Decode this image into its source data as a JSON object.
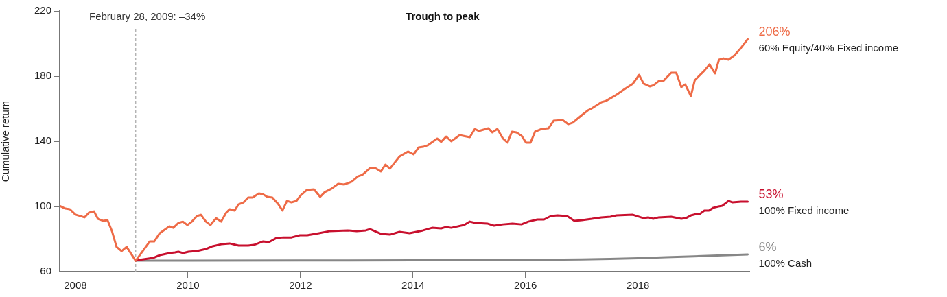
{
  "chart_data": {
    "type": "line",
    "title": "Trough to peak",
    "ylabel": "Cumulative return",
    "xlim": [
      2007.72,
      2019.98
    ],
    "xticks": [
      2008,
      2010,
      2012,
      2014,
      2016,
      2018
    ],
    "ylim": [
      60,
      220
    ],
    "yticks": [
      60,
      100,
      140,
      180,
      220
    ],
    "legend": false,
    "marker": "none",
    "line_style": "solid",
    "ref_lines": [
      {
        "axis": "x",
        "value": 2009.07,
        "label": "February 28, 2009: –34%",
        "color": "#b3b3b3",
        "line_style": "dashed"
      }
    ],
    "annotations": [
      "206%",
      "53%",
      "6%"
    ],
    "series": [
      {
        "name": "60% Equity/40% Fixed income",
        "color": "#ee6b47",
        "x": [
          2007.72,
          2007.82,
          2007.9,
          2008.0,
          2008.16,
          2008.24,
          2008.33,
          2008.4,
          2008.49,
          2008.57,
          2008.65,
          2008.73,
          2008.82,
          2008.91,
          2009.07,
          2009.18,
          2009.32,
          2009.4,
          2009.5,
          2009.67,
          2009.74,
          2009.83,
          2009.91,
          2009.99,
          2010.07,
          2010.16,
          2010.23,
          2010.32,
          2010.4,
          2010.5,
          2010.59,
          2010.68,
          2010.74,
          2010.83,
          2010.9,
          2010.99,
          2011.07,
          2011.15,
          2011.26,
          2011.33,
          2011.41,
          2011.5,
          2011.6,
          2011.68,
          2011.76,
          2011.84,
          2011.93,
          2012.0,
          2012.11,
          2012.24,
          2012.35,
          2012.43,
          2012.55,
          2012.67,
          2012.78,
          2012.91,
          2013.02,
          2013.1,
          2013.24,
          2013.33,
          2013.43,
          2013.51,
          2013.59,
          2013.76,
          2013.91,
          2014.01,
          2014.1,
          2014.18,
          2014.26,
          2014.43,
          2014.5,
          2014.59,
          2014.68,
          2014.83,
          2015.01,
          2015.1,
          2015.17,
          2015.34,
          2015.41,
          2015.5,
          2015.6,
          2015.68,
          2015.76,
          2015.84,
          2015.93,
          2016.01,
          2016.09,
          2016.17,
          2016.29,
          2016.41,
          2016.5,
          2016.66,
          2016.76,
          2016.84,
          2017.0,
          2017.11,
          2017.18,
          2017.35,
          2017.43,
          2017.54,
          2017.62,
          2017.76,
          2017.91,
          2018.02,
          2018.1,
          2018.21,
          2018.28,
          2018.37,
          2018.45,
          2018.59,
          2018.68,
          2018.77,
          2018.84,
          2018.94,
          2019.01,
          2019.18,
          2019.27,
          2019.37,
          2019.44,
          2019.52,
          2019.61,
          2019.71,
          2019.83,
          2019.95
        ],
        "values": [
          100.4,
          98.7,
          98.3,
          95.0,
          93.3,
          96.2,
          97.0,
          92.4,
          91.2,
          91.6,
          84.8,
          75.2,
          72.6,
          75.2,
          66.7,
          71.8,
          78.5,
          78.5,
          83.6,
          87.8,
          86.9,
          89.9,
          90.7,
          88.6,
          90.7,
          94.1,
          94.9,
          90.7,
          88.6,
          92.8,
          90.7,
          96.2,
          98.3,
          97.5,
          101.3,
          102.5,
          105.5,
          105.5,
          108.0,
          107.6,
          105.9,
          105.5,
          101.7,
          97.5,
          103.4,
          102.5,
          103.4,
          106.7,
          110.1,
          110.5,
          105.9,
          108.8,
          110.9,
          113.9,
          113.5,
          115.2,
          118.5,
          119.4,
          123.6,
          123.6,
          121.5,
          125.7,
          123.2,
          130.7,
          133.7,
          132.0,
          136.2,
          136.6,
          137.5,
          141.7,
          139.6,
          142.9,
          140.0,
          143.8,
          142.5,
          147.6,
          146.3,
          148.0,
          145.5,
          147.6,
          141.7,
          139.2,
          145.9,
          145.5,
          143.4,
          139.2,
          139.2,
          145.9,
          147.6,
          148.0,
          152.6,
          153.1,
          150.5,
          151.4,
          156.0,
          159.0,
          160.2,
          164.0,
          164.8,
          167.0,
          168.6,
          172.0,
          175.4,
          180.8,
          175.4,
          173.7,
          174.5,
          177.0,
          177.0,
          182.1,
          182.1,
          173.3,
          174.9,
          167.8,
          177.5,
          183.4,
          187.2,
          181.7,
          190.1,
          190.9,
          190.1,
          192.6,
          197.3,
          202.7
        ]
      },
      {
        "name": "100% Fixed income",
        "color": "#c8102e",
        "x": [
          2009.07,
          2009.13,
          2009.38,
          2009.5,
          2009.67,
          2009.77,
          2009.83,
          2009.91,
          2010.01,
          2010.16,
          2010.32,
          2010.44,
          2010.59,
          2010.74,
          2010.9,
          2011.07,
          2011.17,
          2011.33,
          2011.44,
          2011.57,
          2011.7,
          2011.84,
          2011.99,
          2012.12,
          2012.33,
          2012.51,
          2012.84,
          2013.0,
          2013.16,
          2013.24,
          2013.43,
          2013.59,
          2013.76,
          2013.94,
          2014.18,
          2014.34,
          2014.5,
          2014.59,
          2014.68,
          2014.91,
          2015.01,
          2015.11,
          2015.32,
          2015.44,
          2015.6,
          2015.77,
          2015.93,
          2016.05,
          2016.21,
          2016.33,
          2016.45,
          2016.57,
          2016.74,
          2016.87,
          2017.0,
          2017.18,
          2017.35,
          2017.51,
          2017.62,
          2017.91,
          2018.1,
          2018.18,
          2018.27,
          2018.37,
          2018.59,
          2018.77,
          2018.85,
          2018.94,
          2019.04,
          2019.1,
          2019.18,
          2019.26,
          2019.34,
          2019.43,
          2019.5,
          2019.61,
          2019.68,
          2019.83,
          2019.95
        ],
        "values": [
          66.7,
          67.2,
          68.4,
          70.1,
          71.4,
          71.8,
          72.2,
          71.4,
          72.2,
          72.6,
          73.9,
          75.6,
          76.8,
          77.3,
          76.0,
          76.0,
          76.4,
          78.5,
          78.1,
          80.6,
          81.0,
          81.0,
          82.3,
          82.3,
          83.6,
          84.8,
          85.3,
          84.8,
          85.3,
          86.1,
          83.2,
          82.7,
          84.4,
          83.6,
          85.3,
          86.9,
          86.5,
          87.4,
          86.9,
          88.6,
          90.7,
          89.9,
          89.5,
          88.2,
          89.0,
          89.5,
          89.0,
          90.7,
          92.0,
          92.0,
          94.1,
          94.5,
          94.1,
          91.2,
          91.6,
          92.4,
          93.3,
          93.7,
          94.5,
          94.9,
          92.8,
          93.3,
          92.4,
          93.3,
          93.7,
          92.4,
          92.8,
          94.5,
          95.4,
          95.4,
          97.5,
          97.5,
          99.2,
          100.0,
          100.4,
          103.4,
          102.5,
          102.9,
          102.9
        ]
      },
      {
        "name": "100% Cash",
        "color": "#878787",
        "x": [
          2009.07,
          2010,
          2012,
          2014,
          2016,
          2017,
          2017.5,
          2018,
          2018.5,
          2019,
          2019.5,
          2019.95
        ],
        "values": [
          66.7,
          66.7,
          66.8,
          67.0,
          67.2,
          67.5,
          67.8,
          68.2,
          68.8,
          69.4,
          70.0,
          70.5
        ]
      }
    ]
  }
}
